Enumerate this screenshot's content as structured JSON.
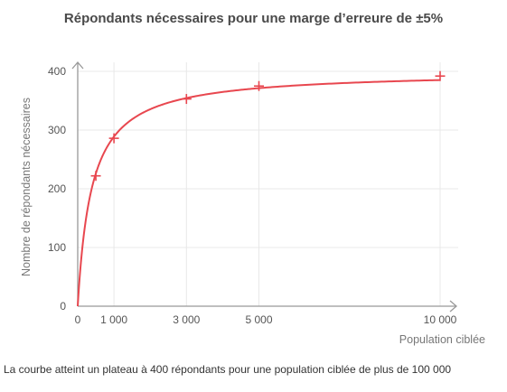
{
  "chart_data": {
    "type": "line",
    "title": "Répondants nécessaires pour une marge d’erreure de ±5%",
    "xlabel": "Population ciblée",
    "ylabel": "Nombre de répondants nécessaires",
    "xlim": [
      0,
      10000
    ],
    "ylim": [
      0,
      400
    ],
    "x_ticks": [
      0,
      1000,
      3000,
      5000,
      10000
    ],
    "x_tick_labels": [
      "0",
      "1 000",
      "3 000",
      "5 000",
      "10 000"
    ],
    "y_ticks": [
      0,
      100,
      200,
      300,
      400
    ],
    "y_tick_labels": [
      "0",
      "100",
      "200",
      "300",
      "400"
    ],
    "grid": true,
    "line_color": "#e8474f",
    "series": [
      {
        "markers": [
          {
            "x": 500,
            "y": 222
          },
          {
            "x": 1000,
            "y": 286
          },
          {
            "x": 3000,
            "y": 353
          },
          {
            "x": 5000,
            "y": 375
          },
          {
            "x": 10000,
            "y": 392
          }
        ]
      }
    ],
    "caption": "La courbe atteint un plateau à 400 répondants pour une population ciblée de plus de 100 000"
  }
}
